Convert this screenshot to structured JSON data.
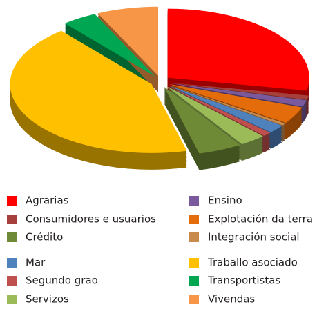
{
  "chart_data": {
    "type": "pie3d",
    "categories": [
      "Agrarias",
      "Consumidores e usuarios",
      "Ensino",
      "Explotación da terra",
      "Integración social",
      "Mar",
      "Segundo grao",
      "Servizos",
      "Crédito",
      "Traballo asociado",
      "Transportistas",
      "Vivendas"
    ],
    "values": [
      28,
      1,
      1.5,
      4,
      0.5,
      2,
      1,
      3,
      5,
      43,
      4,
      7
    ],
    "colors": [
      "#ff0000",
      "#a5403d",
      "#7a5a9c",
      "#e46c0a",
      "#c98a4e",
      "#4f81bd",
      "#c0504d",
      "#9bbb59",
      "#6e8a36",
      "#ffc000",
      "#00a651",
      "#f79646"
    ],
    "legend": "bottom"
  }
}
